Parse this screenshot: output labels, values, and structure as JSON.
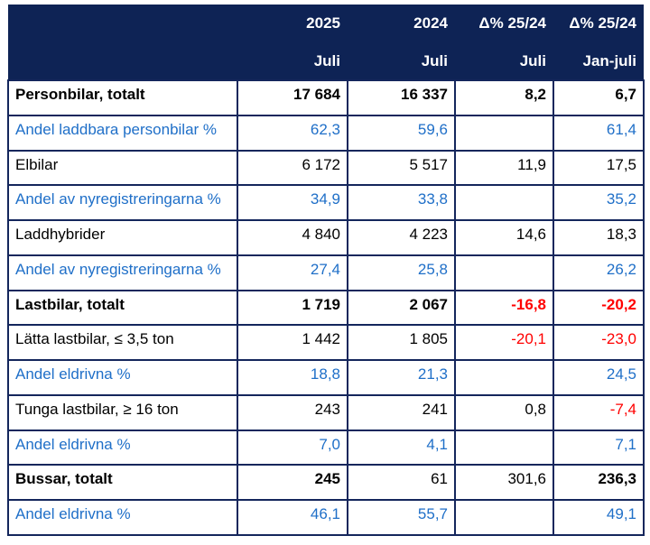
{
  "colors": {
    "header_bg": "#0E2355",
    "cell_border": "#14265C",
    "blue_text": "#1F6FC8",
    "red_text": "#FF0000",
    "black_text": "#000000",
    "page_bg": "#FFFFFF",
    "header_text": "#FFFFFF"
  },
  "table": {
    "header": {
      "years": [
        "2025",
        "2024",
        "Δ% 25/24",
        "Δ% 25/24"
      ],
      "periods": [
        "Juli",
        "Juli",
        "Juli",
        "Jan-juli"
      ]
    },
    "rows": [
      {
        "label": "Personbilar, totalt",
        "label_bold": true,
        "label_color": "black",
        "cells": [
          {
            "t": "17 684",
            "c": "black",
            "b": true
          },
          {
            "t": "16 337",
            "c": "black",
            "b": true
          },
          {
            "t": "8,2",
            "c": "black",
            "b": true
          },
          {
            "t": "6,7",
            "c": "black",
            "b": true
          }
        ]
      },
      {
        "label": "Andel laddbara personbilar %",
        "label_bold": false,
        "label_color": "blue",
        "cells": [
          {
            "t": "62,3",
            "c": "blue",
            "b": false
          },
          {
            "t": "59,6",
            "c": "blue",
            "b": false
          },
          {
            "t": "",
            "c": "blue",
            "b": false
          },
          {
            "t": "61,4",
            "c": "blue",
            "b": false
          }
        ]
      },
      {
        "label": "Elbilar",
        "label_bold": false,
        "label_color": "black",
        "cells": [
          {
            "t": "6 172",
            "c": "black",
            "b": false
          },
          {
            "t": "5 517",
            "c": "black",
            "b": false
          },
          {
            "t": "11,9",
            "c": "black",
            "b": false
          },
          {
            "t": "17,5",
            "c": "black",
            "b": false
          }
        ]
      },
      {
        "label": "Andel av nyregistreringarna %",
        "label_bold": false,
        "label_color": "blue",
        "cells": [
          {
            "t": "34,9",
            "c": "blue",
            "b": false
          },
          {
            "t": "33,8",
            "c": "blue",
            "b": false
          },
          {
            "t": "",
            "c": "blue",
            "b": false
          },
          {
            "t": "35,2",
            "c": "blue",
            "b": false
          }
        ]
      },
      {
        "label": "Laddhybrider",
        "label_bold": false,
        "label_color": "black",
        "cells": [
          {
            "t": "4 840",
            "c": "black",
            "b": false
          },
          {
            "t": "4 223",
            "c": "black",
            "b": false
          },
          {
            "t": "14,6",
            "c": "black",
            "b": false
          },
          {
            "t": "18,3",
            "c": "black",
            "b": false
          }
        ]
      },
      {
        "label": "Andel av nyregistreringarna %",
        "label_bold": false,
        "label_color": "blue",
        "cells": [
          {
            "t": "27,4",
            "c": "blue",
            "b": false
          },
          {
            "t": "25,8",
            "c": "blue",
            "b": false
          },
          {
            "t": "",
            "c": "blue",
            "b": false
          },
          {
            "t": "26,2",
            "c": "blue",
            "b": false
          }
        ]
      },
      {
        "label": "Lastbilar, totalt",
        "label_bold": true,
        "label_color": "black",
        "cells": [
          {
            "t": "1 719",
            "c": "black",
            "b": true
          },
          {
            "t": "2 067",
            "c": "black",
            "b": true
          },
          {
            "t": "-16,8",
            "c": "red",
            "b": true
          },
          {
            "t": "-20,2",
            "c": "red",
            "b": true
          }
        ]
      },
      {
        "label": "Lätta lastbilar, ≤ 3,5 ton",
        "label_bold": false,
        "label_color": "black",
        "cells": [
          {
            "t": "1 442",
            "c": "black",
            "b": false
          },
          {
            "t": "1 805",
            "c": "black",
            "b": false
          },
          {
            "t": "-20,1",
            "c": "red",
            "b": false
          },
          {
            "t": "-23,0",
            "c": "red",
            "b": false
          }
        ]
      },
      {
        "label": "Andel eldrivna %",
        "label_bold": false,
        "label_color": "blue",
        "cells": [
          {
            "t": "18,8",
            "c": "blue",
            "b": false
          },
          {
            "t": "21,3",
            "c": "blue",
            "b": false
          },
          {
            "t": "",
            "c": "blue",
            "b": false
          },
          {
            "t": "24,5",
            "c": "blue",
            "b": false
          }
        ]
      },
      {
        "label": "Tunga lastbilar, ≥ 16 ton",
        "label_bold": false,
        "label_color": "black",
        "cells": [
          {
            "t": "243",
            "c": "black",
            "b": false
          },
          {
            "t": "241",
            "c": "black",
            "b": false
          },
          {
            "t": "0,8",
            "c": "black",
            "b": false
          },
          {
            "t": "-7,4",
            "c": "red",
            "b": false
          }
        ]
      },
      {
        "label": "Andel eldrivna %",
        "label_bold": false,
        "label_color": "blue",
        "cells": [
          {
            "t": "7,0",
            "c": "blue",
            "b": false
          },
          {
            "t": "4,1",
            "c": "blue",
            "b": false
          },
          {
            "t": "",
            "c": "blue",
            "b": false
          },
          {
            "t": "7,1",
            "c": "blue",
            "b": false
          }
        ]
      },
      {
        "label": "Bussar, totalt",
        "label_bold": true,
        "label_color": "black",
        "cells": [
          {
            "t": "245",
            "c": "black",
            "b": true
          },
          {
            "t": "61",
            "c": "black",
            "b": false
          },
          {
            "t": "301,6",
            "c": "black",
            "b": false
          },
          {
            "t": "236,3",
            "c": "black",
            "b": true
          }
        ]
      },
      {
        "label": "Andel eldrivna %",
        "label_bold": false,
        "label_color": "blue",
        "cells": [
          {
            "t": "46,1",
            "c": "blue",
            "b": false
          },
          {
            "t": "55,7",
            "c": "blue",
            "b": false
          },
          {
            "t": "",
            "c": "blue",
            "b": false
          },
          {
            "t": "49,1",
            "c": "blue",
            "b": false
          }
        ]
      }
    ]
  },
  "chart_data": {
    "type": "table",
    "title": "",
    "columns": [
      "",
      "2025 Juli",
      "2024 Juli",
      "Δ% 25/24 Juli",
      "Δ% 25/24 Jan-juli"
    ],
    "rows": [
      [
        "Personbilar, totalt",
        "17 684",
        "16 337",
        "8,2",
        "6,7"
      ],
      [
        "Andel laddbara personbilar %",
        "62,3",
        "59,6",
        "",
        "61,4"
      ],
      [
        "Elbilar",
        "6 172",
        "5 517",
        "11,9",
        "17,5"
      ],
      [
        "Andel av nyregistreringarna %",
        "34,9",
        "33,8",
        "",
        "35,2"
      ],
      [
        "Laddhybrider",
        "4 840",
        "4 223",
        "14,6",
        "18,3"
      ],
      [
        "Andel av nyregistreringarna %",
        "27,4",
        "25,8",
        "",
        "26,2"
      ],
      [
        "Lastbilar, totalt",
        "1 719",
        "2 067",
        "-16,8",
        "-20,2"
      ],
      [
        "Lätta lastbilar, ≤ 3,5 ton",
        "1 442",
        "1 805",
        "-20,1",
        "-23,0"
      ],
      [
        "Andel eldrivna %",
        "18,8",
        "21,3",
        "",
        "24,5"
      ],
      [
        "Tunga lastbilar, ≥ 16 ton",
        "243",
        "241",
        "0,8",
        "-7,4"
      ],
      [
        "Andel eldrivna %",
        "7,0",
        "4,1",
        "",
        "7,1"
      ],
      [
        "Bussar, totalt",
        "245",
        "61",
        "301,6",
        "236,3"
      ],
      [
        "Andel eldrivna %",
        "46,1",
        "55,7",
        "",
        "49,1"
      ]
    ]
  }
}
